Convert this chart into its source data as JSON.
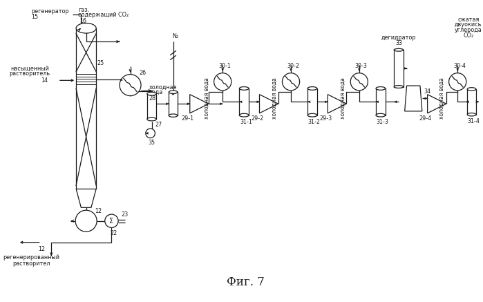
{
  "bg_color": "#ffffff",
  "lc": "#1a1a1a",
  "fig_caption": "Фиг. 7",
  "lbl_regenerator": "регенератор",
  "lbl_gas_co2_line1": "газ,",
  "lbl_gas_co2_line2": "содержащий CO₂",
  "lbl_saturated_line1": "насыщенный",
  "lbl_saturated_line2": "растворитель",
  "lbl_cold_water_line1": "холодная",
  "lbl_cold_water_line2": "вода",
  "lbl_cold_water_vert": "холодная вода",
  "lbl_dehydrator": "дегидратор",
  "lbl_compressed_line1": "сжатая",
  "lbl_compressed_line2": "двуокись",
  "lbl_compressed_line3": "углерода",
  "lbl_co2": "CO₂",
  "lbl_regenerated_line1": "регенерированный",
  "lbl_regenerated_line2": "растворител",
  "lbl_N2": "N₂"
}
